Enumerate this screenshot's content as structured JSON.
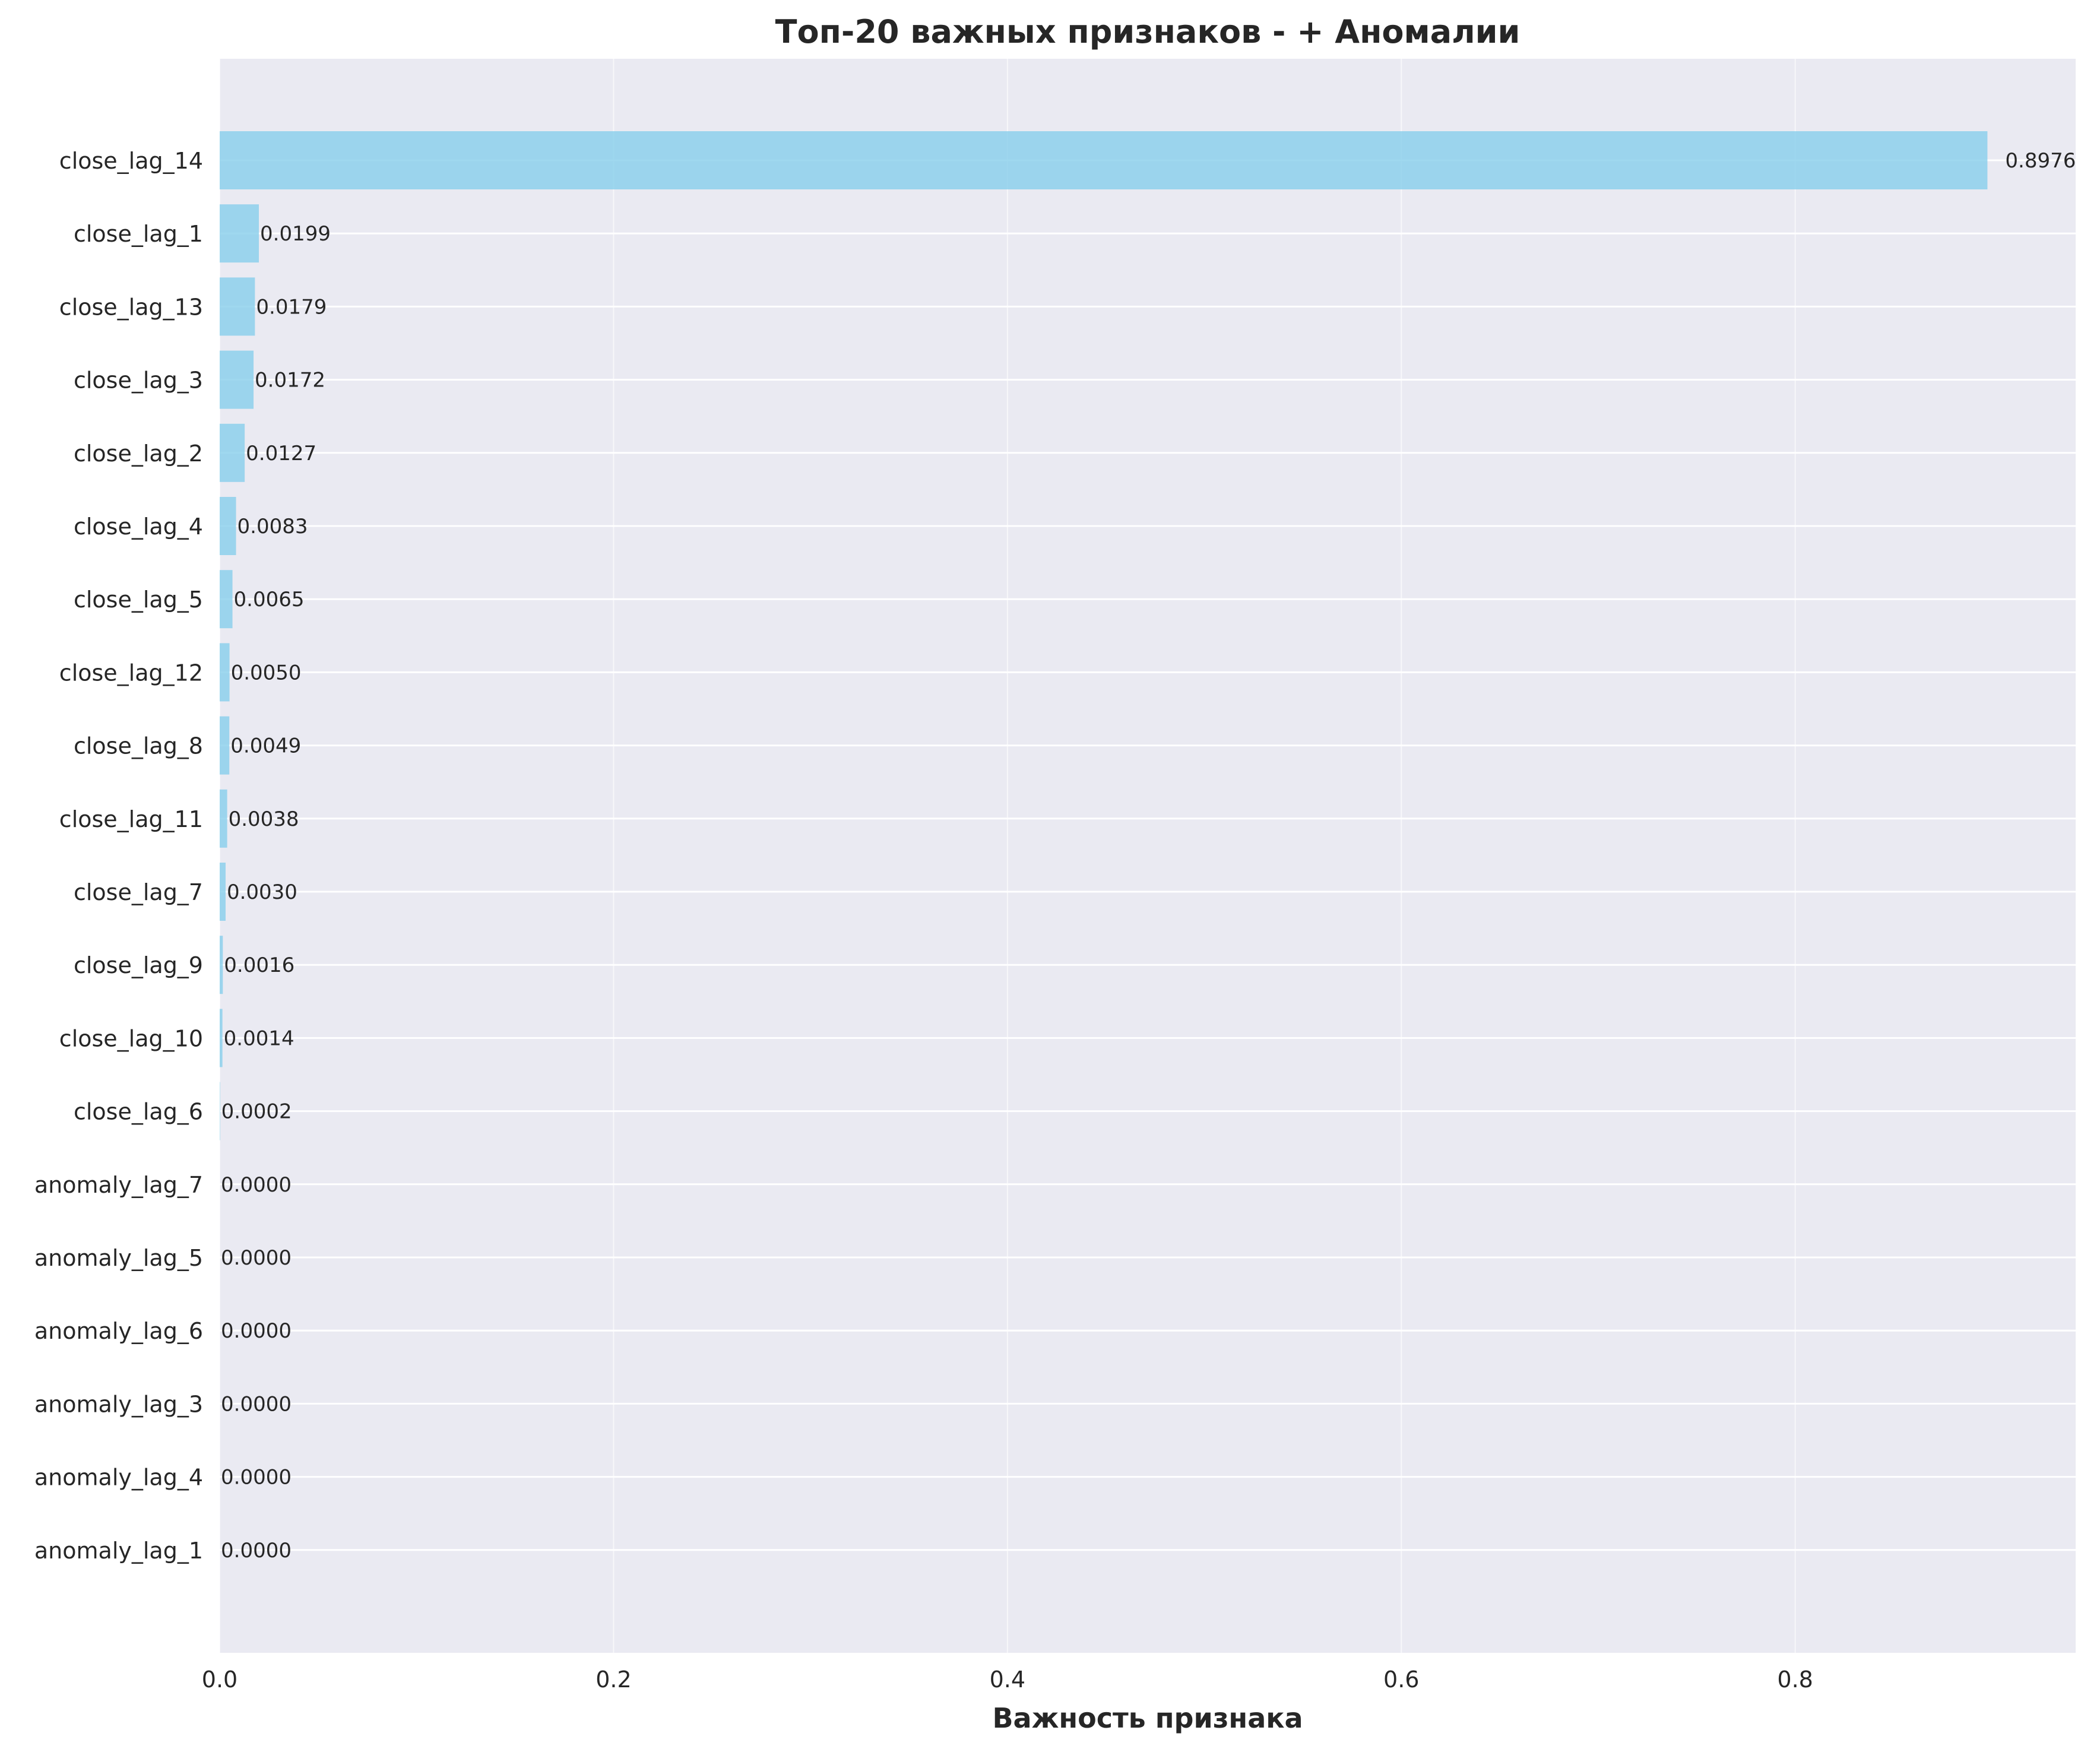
{
  "chart_data": {
    "type": "bar",
    "orientation": "horizontal",
    "title": "Топ-20 важных признаков - + Аномалии",
    "xlabel": "Важность признака",
    "ylabel": "",
    "xlim": [
      0,
      0.9424
    ],
    "xticks": [
      "0.0",
      "0.2",
      "0.4",
      "0.6",
      "0.8"
    ],
    "xtick_values": [
      0,
      0.2,
      0.4,
      0.6,
      0.8
    ],
    "grid": true,
    "bar_color": "#87CEEB",
    "background_color": "#EAEAF2",
    "categories": [
      "close_lag_14",
      "close_lag_1",
      "close_lag_13",
      "close_lag_3",
      "close_lag_2",
      "close_lag_4",
      "close_lag_5",
      "close_lag_12",
      "close_lag_8",
      "close_lag_11",
      "close_lag_7",
      "close_lag_9",
      "close_lag_10",
      "close_lag_6",
      "anomaly_lag_7",
      "anomaly_lag_5",
      "anomaly_lag_6",
      "anomaly_lag_3",
      "anomaly_lag_4",
      "anomaly_lag_1"
    ],
    "values": [
      0.8976,
      0.0199,
      0.0179,
      0.0172,
      0.0127,
      0.0083,
      0.0065,
      0.005,
      0.0049,
      0.0038,
      0.003,
      0.0016,
      0.0014,
      0.0002,
      0.0,
      0.0,
      0.0,
      0.0,
      0.0,
      0.0
    ],
    "value_labels": [
      "0.8976",
      "0.0199",
      "0.0179",
      "0.0172",
      "0.0127",
      "0.0083",
      "0.0065",
      "0.0050",
      "0.0049",
      "0.0038",
      "0.0030",
      "0.0016",
      "0.0014",
      "0.0002",
      "0.0000",
      "0.0000",
      "0.0000",
      "0.0000",
      "0.0000",
      "0.0000"
    ]
  }
}
